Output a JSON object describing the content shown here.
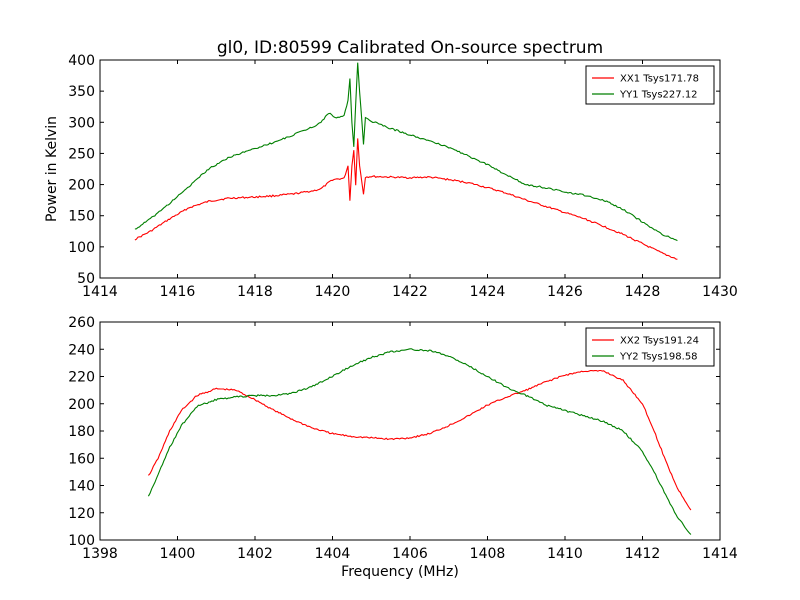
{
  "figure": {
    "title": "gl0, ID:80599 Calibrated On-source spectrum"
  },
  "chart_data": [
    {
      "type": "line",
      "xlabel": "",
      "ylabel": "Power in Kelvin",
      "xlim": [
        1414,
        1430
      ],
      "ylim": [
        50,
        400
      ],
      "xticks": [
        1414,
        1416,
        1418,
        1420,
        1422,
        1424,
        1426,
        1428,
        1430
      ],
      "yticks": [
        50,
        100,
        150,
        200,
        250,
        300,
        350,
        400
      ],
      "grid": false,
      "legend_position": "top-right",
      "series": [
        {
          "name": "XX1 Tsys171.78",
          "color": "#ff0000",
          "points": [
            [
              1414.9,
              112
            ],
            [
              1415.3,
              125
            ],
            [
              1415.8,
              145
            ],
            [
              1416.3,
              163
            ],
            [
              1416.8,
              173
            ],
            [
              1417.3,
              178
            ],
            [
              1418.0,
              180
            ],
            [
              1418.5,
              182
            ],
            [
              1419.0,
              185
            ],
            [
              1419.5,
              190
            ],
            [
              1419.7,
              193
            ],
            [
              1420.0,
              208
            ],
            [
              1420.3,
              210
            ],
            [
              1420.4,
              230
            ],
            [
              1420.45,
              175
            ],
            [
              1420.5,
              230
            ],
            [
              1420.55,
              255
            ],
            [
              1420.6,
              200
            ],
            [
              1420.65,
              275
            ],
            [
              1420.7,
              230
            ],
            [
              1420.8,
              185
            ],
            [
              1420.85,
              212
            ],
            [
              1421.0,
              213
            ],
            [
              1421.5,
              212
            ],
            [
              1422.0,
              211
            ],
            [
              1422.5,
              212
            ],
            [
              1423.0,
              208
            ],
            [
              1423.5,
              203
            ],
            [
              1424.0,
              195
            ],
            [
              1424.5,
              186
            ],
            [
              1425.0,
              175
            ],
            [
              1425.5,
              165
            ],
            [
              1426.0,
              155
            ],
            [
              1426.5,
              145
            ],
            [
              1427.0,
              133
            ],
            [
              1427.5,
              120
            ],
            [
              1428.0,
              105
            ],
            [
              1428.5,
              90
            ],
            [
              1428.9,
              80
            ]
          ]
        },
        {
          "name": "YY1 Tsys227.12",
          "color": "#007f00",
          "points": [
            [
              1414.9,
              128
            ],
            [
              1415.3,
              145
            ],
            [
              1415.8,
              170
            ],
            [
              1416.3,
              197
            ],
            [
              1416.8,
              225
            ],
            [
              1417.3,
              243
            ],
            [
              1418.0,
              258
            ],
            [
              1418.5,
              268
            ],
            [
              1419.0,
              280
            ],
            [
              1419.5,
              293
            ],
            [
              1419.7,
              300
            ],
            [
              1419.9,
              315
            ],
            [
              1420.1,
              307
            ],
            [
              1420.3,
              310
            ],
            [
              1420.4,
              335
            ],
            [
              1420.45,
              370
            ],
            [
              1420.5,
              300
            ],
            [
              1420.55,
              260
            ],
            [
              1420.6,
              330
            ],
            [
              1420.65,
              396
            ],
            [
              1420.7,
              350
            ],
            [
              1420.8,
              265
            ],
            [
              1420.85,
              307
            ],
            [
              1421.0,
              302
            ],
            [
              1421.5,
              290
            ],
            [
              1422.0,
              280
            ],
            [
              1422.5,
              270
            ],
            [
              1423.0,
              260
            ],
            [
              1423.5,
              246
            ],
            [
              1424.0,
              232
            ],
            [
              1424.5,
              215
            ],
            [
              1425.0,
              200
            ],
            [
              1425.5,
              195
            ],
            [
              1426.0,
              188
            ],
            [
              1426.5,
              183
            ],
            [
              1427.0,
              175
            ],
            [
              1427.5,
              160
            ],
            [
              1428.0,
              140
            ],
            [
              1428.5,
              120
            ],
            [
              1428.9,
              110
            ]
          ]
        }
      ]
    },
    {
      "type": "line",
      "xlabel": "Frequency (MHz)",
      "ylabel": "",
      "xlim": [
        1398,
        1414
      ],
      "ylim": [
        100,
        260
      ],
      "xticks": [
        1398,
        1400,
        1402,
        1404,
        1406,
        1408,
        1410,
        1412,
        1414
      ],
      "yticks": [
        100,
        120,
        140,
        160,
        180,
        200,
        220,
        240,
        260
      ],
      "grid": false,
      "legend_position": "top-right",
      "series": [
        {
          "name": "XX2 Tsys191.24",
          "color": "#ff0000",
          "points": [
            [
              1399.25,
              147
            ],
            [
              1399.5,
              160
            ],
            [
              1399.8,
              180
            ],
            [
              1400.1,
              195
            ],
            [
              1400.5,
              206
            ],
            [
              1401.0,
              211
            ],
            [
              1401.5,
              210
            ],
            [
              1402.0,
              203
            ],
            [
              1402.5,
              195
            ],
            [
              1403.0,
              188
            ],
            [
              1403.5,
              182
            ],
            [
              1404.0,
              178
            ],
            [
              1404.5,
              176
            ],
            [
              1405.0,
              175
            ],
            [
              1405.5,
              174
            ],
            [
              1406.0,
              175
            ],
            [
              1406.5,
              178
            ],
            [
              1407.0,
              184
            ],
            [
              1407.5,
              191
            ],
            [
              1408.0,
              199
            ],
            [
              1408.5,
              205
            ],
            [
              1409.0,
              210
            ],
            [
              1409.5,
              216
            ],
            [
              1410.0,
              221
            ],
            [
              1410.5,
              224
            ],
            [
              1411.0,
              224
            ],
            [
              1411.5,
              217
            ],
            [
              1412.0,
              200
            ],
            [
              1412.3,
              180
            ],
            [
              1412.6,
              158
            ],
            [
              1412.9,
              138
            ],
            [
              1413.25,
              122
            ]
          ]
        },
        {
          "name": "YY2 Tsys198.58",
          "color": "#007f00",
          "points": [
            [
              1399.25,
              132
            ],
            [
              1399.5,
              148
            ],
            [
              1399.8,
              168
            ],
            [
              1400.1,
              184
            ],
            [
              1400.5,
              198
            ],
            [
              1401.0,
              203
            ],
            [
              1401.5,
              205
            ],
            [
              1402.0,
              206
            ],
            [
              1402.5,
              206
            ],
            [
              1403.0,
              208
            ],
            [
              1403.5,
              213
            ],
            [
              1404.0,
              220
            ],
            [
              1404.5,
              228
            ],
            [
              1405.0,
              234
            ],
            [
              1405.5,
              238
            ],
            [
              1406.0,
              240
            ],
            [
              1406.5,
              239
            ],
            [
              1407.0,
              235
            ],
            [
              1407.5,
              228
            ],
            [
              1408.0,
              220
            ],
            [
              1408.5,
              212
            ],
            [
              1409.0,
              206
            ],
            [
              1409.5,
              199
            ],
            [
              1410.0,
              195
            ],
            [
              1410.5,
              191
            ],
            [
              1411.0,
              187
            ],
            [
              1411.5,
              180
            ],
            [
              1412.0,
              165
            ],
            [
              1412.3,
              150
            ],
            [
              1412.6,
              133
            ],
            [
              1412.9,
              117
            ],
            [
              1413.25,
              104
            ]
          ]
        }
      ]
    }
  ]
}
